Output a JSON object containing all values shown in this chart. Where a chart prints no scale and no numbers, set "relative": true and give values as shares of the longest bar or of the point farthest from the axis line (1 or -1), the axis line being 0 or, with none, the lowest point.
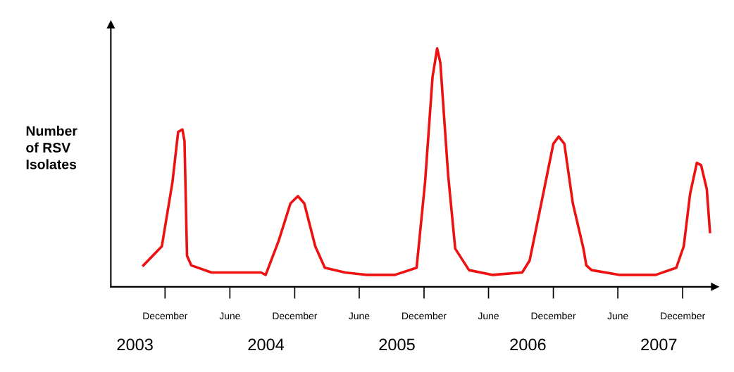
{
  "chart_data": {
    "type": "line",
    "relative": true,
    "ylabel": "Number\nof RSV\nIsolates",
    "xlim": [
      "2003-07-01",
      "2008-03-01"
    ],
    "xticks": [
      {
        "value": "2003-12-01",
        "label": "December"
      },
      {
        "value": "2004-06-01",
        "label": "June"
      },
      {
        "value": "2004-12-01",
        "label": "December"
      },
      {
        "value": "2005-06-01",
        "label": "June"
      },
      {
        "value": "2005-12-01",
        "label": "December"
      },
      {
        "value": "2006-06-01",
        "label": "June"
      },
      {
        "value": "2006-12-01",
        "label": "December"
      },
      {
        "value": "2007-06-01",
        "label": "June"
      },
      {
        "value": "2007-12-01",
        "label": "December"
      }
    ],
    "tick_labels": "x",
    "grid": false,
    "legend": false,
    "marker": "none",
    "line_style": "solid",
    "annotations": [
      "2003",
      "2004",
      "2005",
      "2006",
      "2007"
    ],
    "series": [
      {
        "color": "#ee1111",
        "x": [
          "2003-10-01",
          "2003-11-22",
          "2003-12-22",
          "2004-01-07",
          "2004-01-19",
          "2004-01-25",
          "2004-02-01",
          "2004-02-13",
          "2004-04-10",
          "2004-06-28",
          "2004-08-28",
          "2004-09-10",
          "2004-10-16",
          "2004-11-19",
          "2004-12-10",
          "2004-12-28",
          "2005-01-28",
          "2005-02-24",
          "2005-04-22",
          "2005-06-22",
          "2005-09-10",
          "2005-11-10",
          "2005-12-04",
          "2005-12-25",
          "2006-01-07",
          "2006-01-16",
          "2006-02-07",
          "2006-02-27",
          "2006-04-07",
          "2006-06-13",
          "2006-09-04",
          "2006-09-25",
          "2006-11-01",
          "2006-12-01",
          "2006-12-16",
          "2007-01-01",
          "2007-01-25",
          "2007-02-24",
          "2007-03-04",
          "2007-03-19",
          "2007-06-07",
          "2007-09-16",
          "2007-11-13",
          "2007-12-04",
          "2007-12-22",
          "2008-01-10",
          "2008-01-22",
          "2008-02-07",
          "2008-02-16"
        ],
        "values": [
          0.09,
          0.17,
          0.44,
          0.65,
          0.66,
          0.61,
          0.13,
          0.09,
          0.06,
          0.06,
          0.06,
          0.05,
          0.19,
          0.35,
          0.38,
          0.35,
          0.17,
          0.08,
          0.06,
          0.05,
          0.05,
          0.08,
          0.44,
          0.88,
          1.0,
          0.94,
          0.47,
          0.16,
          0.07,
          0.05,
          0.06,
          0.11,
          0.38,
          0.6,
          0.63,
          0.6,
          0.35,
          0.16,
          0.09,
          0.07,
          0.05,
          0.05,
          0.08,
          0.17,
          0.39,
          0.52,
          0.51,
          0.41,
          0.23
        ]
      }
    ]
  }
}
